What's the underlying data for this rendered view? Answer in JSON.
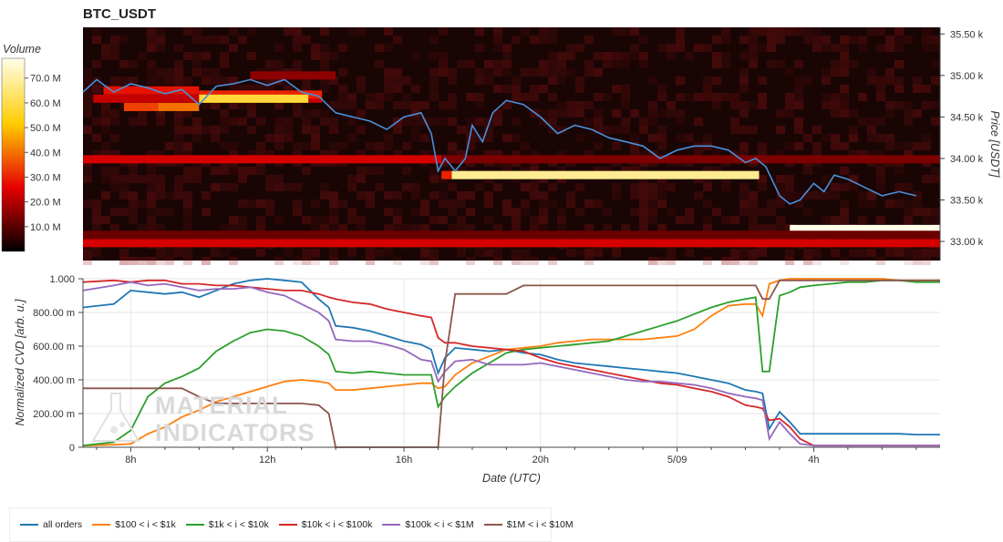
{
  "title": "BTC_USDT",
  "colorbar": {
    "title": "Volume",
    "ticks": [
      "70.0 M",
      "60.0 M",
      "50.0 M",
      "40.0 M",
      "30.0 M",
      "20.0 M",
      "10.0 M"
    ],
    "tick_values": [
      70,
      60,
      50,
      40,
      30,
      20,
      10
    ],
    "max": 78
  },
  "heatmap_y_axis": {
    "label": "Price [USDT]",
    "ticks": [
      "35.50 k",
      "35.00 k",
      "34.50 k",
      "34.00 k",
      "33.50 k",
      "33.00 k"
    ],
    "tick_values": [
      35500,
      35000,
      34500,
      34000,
      33500,
      33000
    ],
    "range": [
      32770,
      35580
    ]
  },
  "cvd_y_axis": {
    "label": "Normalized CVD [arb. u.]",
    "ticks": [
      "1.000",
      "800.00 m",
      "600.00 m",
      "400.00 m",
      "200.00 m",
      "0"
    ],
    "tick_values": [
      1,
      0.8,
      0.6,
      0.4,
      0.2,
      0
    ],
    "range": [
      0,
      1
    ]
  },
  "x_axis": {
    "label": "Date (UTC)",
    "ticks": [
      "8h",
      "12h",
      "16h",
      "20h",
      "5/09",
      "4h"
    ],
    "tick_values": [
      8,
      12,
      16,
      20,
      24,
      28
    ],
    "range": [
      6.6,
      31.7
    ]
  },
  "watermark": {
    "line1": "MATERIAL",
    "line2": "INDICATORS"
  },
  "legend": [
    {
      "label": "all orders",
      "color": "#1f77b4"
    },
    {
      "label": "$100 < i < $1k",
      "color": "#ff7f0e"
    },
    {
      "label": "$1k < i < $10k",
      "color": "#2ca02c"
    },
    {
      "label": "$10k < i < $100k",
      "color": "#d62728"
    },
    {
      "label": "$100k < i < $1M",
      "color": "#9467bd"
    },
    {
      "label": "$1M < i < $10M",
      "color": "#8c564b"
    }
  ],
  "chart_data": [
    {
      "type": "heatmap",
      "title": "BTC_USDT",
      "ylabel": "Price [USDT]",
      "zlabel": "Volume",
      "zlim": [
        0,
        78
      ],
      "bands": [
        {
          "price": 34820,
          "x_start": 7.2,
          "x_end": 10.0,
          "volume": 28
        },
        {
          "price": 34720,
          "x_start": 6.9,
          "x_end": 13.6,
          "volume": 22
        },
        {
          "price": 34770,
          "x_start": 10.0,
          "x_end": 13.6,
          "volume": 30
        },
        {
          "price": 34720,
          "x_start": 10.0,
          "x_end": 13.2,
          "volume": 58
        },
        {
          "price": 34620,
          "x_start": 7.8,
          "x_end": 8.8,
          "volume": 34
        },
        {
          "price": 34620,
          "x_start": 8.8,
          "x_end": 10.0,
          "volume": 40
        },
        {
          "price": 35000,
          "x_start": 11.5,
          "x_end": 14.0,
          "volume": 16
        },
        {
          "price": 33990,
          "x_start": 6.6,
          "x_end": 17.1,
          "volume": 24
        },
        {
          "price": 33990,
          "x_start": 17.1,
          "x_end": 31.7,
          "volume": 14
        },
        {
          "price": 33800,
          "x_start": 17.1,
          "x_end": 17.4,
          "volume": 30
        },
        {
          "price": 33800,
          "x_start": 17.4,
          "x_end": 26.4,
          "volume": 68
        },
        {
          "price": 33150,
          "x_start": 27.3,
          "x_end": 31.7,
          "volume": 78
        },
        {
          "price": 32980,
          "x_start": 6.6,
          "x_end": 31.7,
          "volume": 24
        },
        {
          "price": 33080,
          "x_start": 6.6,
          "x_end": 31.7,
          "volume": 12
        }
      ],
      "price_line": {
        "x": [
          6.6,
          7.0,
          7.5,
          8.0,
          8.5,
          9.0,
          9.5,
          10.0,
          10.5,
          11.0,
          11.5,
          12.0,
          12.5,
          13.0,
          13.5,
          14.0,
          14.5,
          15.0,
          15.5,
          16.0,
          16.5,
          16.8,
          17.0,
          17.2,
          17.5,
          17.8,
          18.0,
          18.3,
          18.6,
          19.0,
          19.5,
          20.0,
          20.5,
          21.0,
          21.5,
          22.0,
          22.5,
          23.0,
          23.5,
          24.0,
          24.5,
          25.0,
          25.5,
          26.0,
          26.3,
          26.6,
          27.0,
          27.3,
          27.6,
          28.0,
          28.3,
          28.6,
          29.0,
          29.5,
          30.0,
          30.5,
          31.0
        ],
        "y": [
          34800,
          34950,
          34800,
          34900,
          34850,
          34780,
          34830,
          34650,
          34870,
          34900,
          34950,
          34880,
          34950,
          34800,
          34750,
          34550,
          34500,
          34450,
          34350,
          34500,
          34550,
          34300,
          33850,
          34000,
          33850,
          34000,
          34400,
          34200,
          34550,
          34700,
          34650,
          34500,
          34300,
          34400,
          34350,
          34250,
          34200,
          34150,
          34000,
          34100,
          34150,
          34150,
          34100,
          33950,
          34000,
          33900,
          33550,
          33450,
          33500,
          33700,
          33600,
          33800,
          33750,
          33650,
          33550,
          33600,
          33550
        ]
      }
    },
    {
      "type": "line",
      "xlabel": "Date (UTC)",
      "ylabel": "Normalized CVD [arb. u.]",
      "ylim": [
        0,
        1
      ],
      "x": [
        6.6,
        7.5,
        8.0,
        8.5,
        9.0,
        9.5,
        10.0,
        10.5,
        11.0,
        11.5,
        12.0,
        12.5,
        13.0,
        13.5,
        13.8,
        14.0,
        14.5,
        15.0,
        15.5,
        16.0,
        16.5,
        16.8,
        17.0,
        17.2,
        17.5,
        18.0,
        18.5,
        19.0,
        19.5,
        20.0,
        20.5,
        21.0,
        21.5,
        22.0,
        22.5,
        23.0,
        23.5,
        24.0,
        24.5,
        25.0,
        25.5,
        26.0,
        26.3,
        26.5,
        26.7,
        27.0,
        27.3,
        27.6,
        28.0,
        28.5,
        29.0,
        29.5,
        30.0,
        30.5,
        31.0,
        31.7
      ],
      "series": [
        {
          "name": "all orders",
          "values": [
            0.83,
            0.85,
            0.93,
            0.92,
            0.91,
            0.92,
            0.89,
            0.93,
            0.97,
            0.99,
            1.0,
            0.99,
            0.98,
            0.88,
            0.83,
            0.72,
            0.71,
            0.69,
            0.66,
            0.63,
            0.61,
            0.58,
            0.44,
            0.53,
            0.59,
            0.58,
            0.57,
            0.58,
            0.56,
            0.55,
            0.52,
            0.5,
            0.49,
            0.48,
            0.47,
            0.46,
            0.45,
            0.44,
            0.42,
            0.4,
            0.38,
            0.34,
            0.33,
            0.32,
            0.11,
            0.21,
            0.15,
            0.08,
            0.08,
            0.08,
            0.08,
            0.08,
            0.08,
            0.08,
            0.075,
            0.075
          ]
        },
        {
          "name": "$100 < i < $1k",
          "values": [
            0.01,
            0.015,
            0.02,
            0.08,
            0.12,
            0.18,
            0.22,
            0.27,
            0.3,
            0.33,
            0.36,
            0.39,
            0.4,
            0.39,
            0.38,
            0.34,
            0.34,
            0.35,
            0.36,
            0.37,
            0.38,
            0.38,
            0.35,
            0.36,
            0.43,
            0.5,
            0.54,
            0.58,
            0.59,
            0.6,
            0.62,
            0.63,
            0.64,
            0.64,
            0.64,
            0.64,
            0.65,
            0.66,
            0.7,
            0.78,
            0.84,
            0.85,
            0.85,
            0.78,
            0.97,
            0.99,
            1.0,
            1.0,
            1.0,
            1.0,
            1.0,
            1.0,
            1.0,
            0.99,
            0.99,
            0.99
          ]
        },
        {
          "name": "$1k < i < $10k",
          "values": [
            0.01,
            0.03,
            0.1,
            0.3,
            0.38,
            0.42,
            0.47,
            0.57,
            0.63,
            0.68,
            0.7,
            0.69,
            0.66,
            0.6,
            0.55,
            0.45,
            0.44,
            0.45,
            0.44,
            0.43,
            0.43,
            0.43,
            0.24,
            0.3,
            0.36,
            0.44,
            0.5,
            0.56,
            0.58,
            0.59,
            0.6,
            0.61,
            0.62,
            0.63,
            0.66,
            0.69,
            0.72,
            0.75,
            0.79,
            0.83,
            0.86,
            0.88,
            0.89,
            0.45,
            0.45,
            0.9,
            0.92,
            0.95,
            0.96,
            0.97,
            0.98,
            0.98,
            0.99,
            0.99,
            0.98,
            0.98
          ]
        },
        {
          "name": "$10k < i < $100k",
          "values": [
            0.98,
            0.99,
            0.98,
            0.99,
            0.99,
            0.97,
            0.97,
            0.96,
            0.96,
            0.95,
            0.94,
            0.93,
            0.93,
            0.91,
            0.89,
            0.88,
            0.86,
            0.85,
            0.82,
            0.8,
            0.78,
            0.77,
            0.65,
            0.62,
            0.62,
            0.6,
            0.59,
            0.58,
            0.57,
            0.53,
            0.5,
            0.48,
            0.46,
            0.44,
            0.42,
            0.4,
            0.38,
            0.37,
            0.35,
            0.33,
            0.3,
            0.25,
            0.24,
            0.23,
            0.16,
            0.17,
            0.12,
            0.05,
            0.01,
            0.01,
            0.01,
            0.01,
            0.01,
            0.01,
            0.01,
            0.01
          ]
        },
        {
          "name": "$100k < i < $1M",
          "values": [
            0.93,
            0.96,
            0.98,
            0.96,
            0.97,
            0.95,
            0.93,
            0.94,
            0.94,
            0.95,
            0.92,
            0.9,
            0.85,
            0.8,
            0.75,
            0.64,
            0.63,
            0.63,
            0.61,
            0.58,
            0.52,
            0.51,
            0.39,
            0.45,
            0.51,
            0.52,
            0.49,
            0.49,
            0.49,
            0.5,
            0.48,
            0.46,
            0.44,
            0.42,
            0.4,
            0.39,
            0.39,
            0.38,
            0.37,
            0.35,
            0.32,
            0.3,
            0.29,
            0.28,
            0.05,
            0.15,
            0.08,
            0.02,
            0.01,
            0.01,
            0.01,
            0.01,
            0.01,
            0.01,
            0.01,
            0.01
          ]
        },
        {
          "name": "$1M < i < $10M",
          "values": [
            0.35,
            0.35,
            0.35,
            0.35,
            0.35,
            0.35,
            0.3,
            0.26,
            0.26,
            0.26,
            0.26,
            0.26,
            0.26,
            0.25,
            0.2,
            0.0,
            0.0,
            0.0,
            0.0,
            0.0,
            0.0,
            0.0,
            0.0,
            0.5,
            0.91,
            0.91,
            0.91,
            0.91,
            0.96,
            0.96,
            0.96,
            0.96,
            0.96,
            0.96,
            0.96,
            0.96,
            0.96,
            0.96,
            0.96,
            0.96,
            0.96,
            0.96,
            0.96,
            0.88,
            0.88,
            0.99,
            0.99,
            0.99,
            0.99,
            0.99,
            0.99,
            0.99,
            0.99,
            0.99,
            0.99,
            0.99
          ]
        }
      ]
    }
  ]
}
